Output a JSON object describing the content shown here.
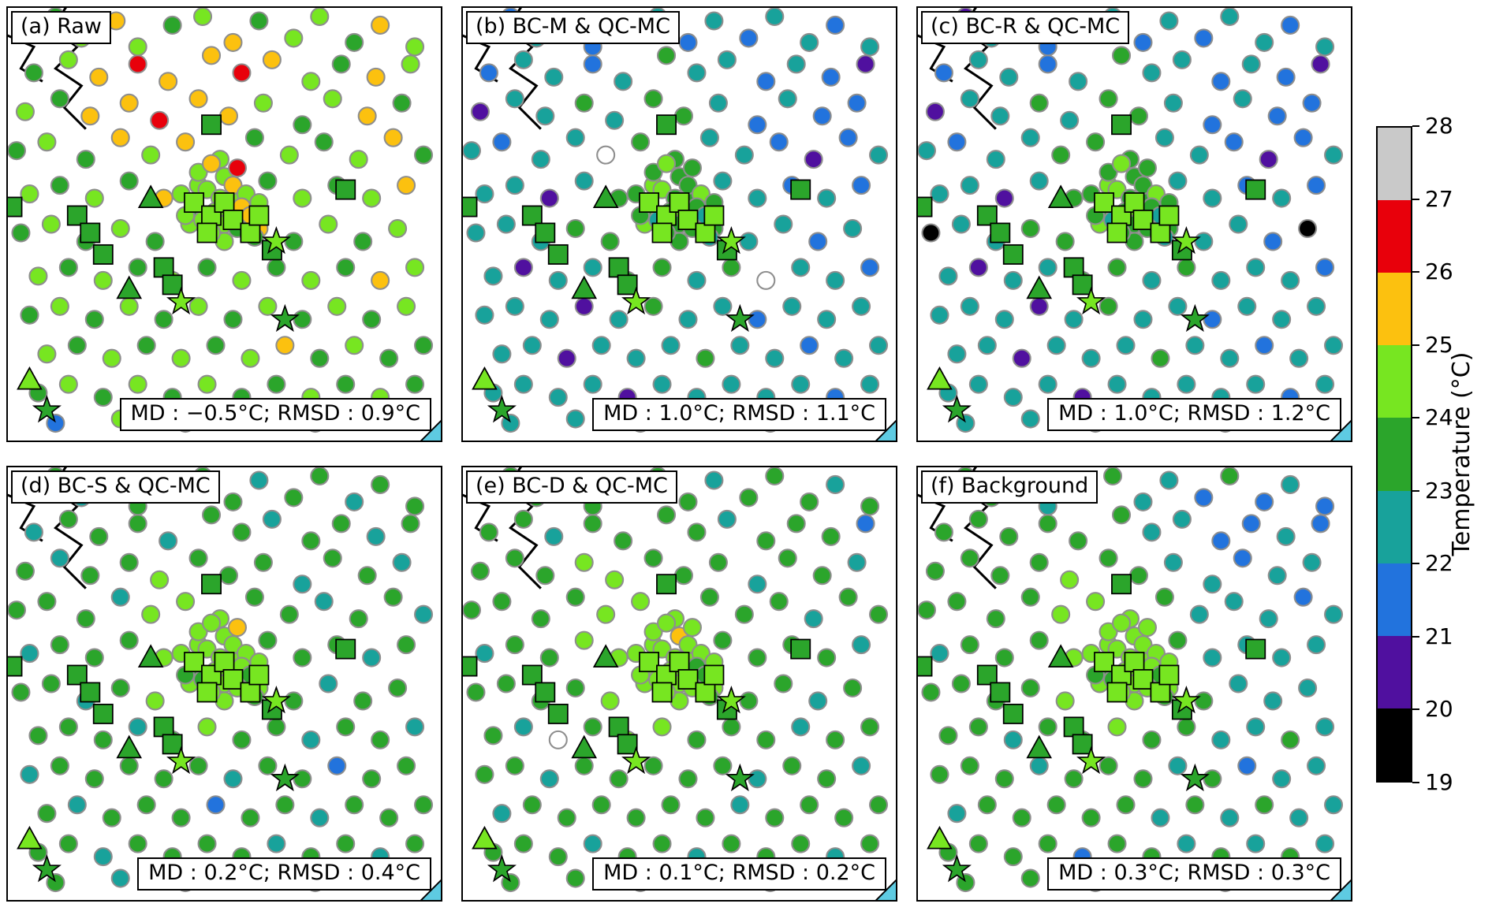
{
  "panels": [
    {
      "id": "a",
      "label": "(a) Raw",
      "stats": "MD : −0.5°C; RMSD : 0.9°C"
    },
    {
      "id": "b",
      "label": "(b) BC-M & QC-MC",
      "stats": "MD : 1.0°C; RMSD : 1.1°C"
    },
    {
      "id": "c",
      "label": "(c) BC-R & QC-MC",
      "stats": "MD : 1.0°C; RMSD : 1.2°C"
    },
    {
      "id": "d",
      "label": "(d) BC-S & QC-MC",
      "stats": "MD : 0.2°C; RMSD : 0.4°C"
    },
    {
      "id": "e",
      "label": "(e) BC-D & QC-MC",
      "stats": "MD : 0.1°C; RMSD : 0.2°C"
    },
    {
      "id": "f",
      "label": "(f) Background",
      "stats": "MD : 0.3°C; RMSD : 0.3°C"
    }
  ],
  "chart_data": {
    "type": "scatter",
    "description": "Six map panels of station temperature markers (circles = crowdsourced stations, squares / triangles / stars = reference stations) colored by temperature; discrete colorbar 19–28 °C.",
    "panel_stats": [
      {
        "panel": "(a) Raw",
        "MD_degC": -0.5,
        "RMSD_degC": 0.9
      },
      {
        "panel": "(b) BC-M & QC-MC",
        "MD_degC": 1.0,
        "RMSD_degC": 1.1
      },
      {
        "panel": "(c) BC-R & QC-MC",
        "MD_degC": 1.0,
        "RMSD_degC": 1.2
      },
      {
        "panel": "(d) BC-S & QC-MC",
        "MD_degC": 0.2,
        "RMSD_degC": 0.4
      },
      {
        "panel": "(e) BC-D & QC-MC",
        "MD_degC": 0.1,
        "RMSD_degC": 0.2
      },
      {
        "panel": "(f) Background",
        "MD_degC": 0.3,
        "RMSD_degC": 0.3
      }
    ],
    "colorbar": {
      "label": "Temperature (°C)",
      "ticks": [
        19,
        20,
        21,
        22,
        23,
        24,
        25,
        26,
        27,
        28
      ],
      "colors_bottom_to_top": [
        "#000000",
        "#50109f",
        "#2273dd",
        "#18a29b",
        "#2ba52b",
        "#77e621",
        "#fcc10f",
        "#e8000b",
        "#c9c9c9"
      ],
      "open_marker_color": "#ffffff",
      "bin_meaning": "digit 0–8 = temperature bin 19–20 … 27–28 °C; digit 9 = open (white) marker"
    },
    "markers": {
      "circles_xy": [
        [
          3,
          4
        ],
        [
          11,
          2
        ],
        [
          17,
          7
        ],
        [
          25,
          3
        ],
        [
          30,
          9
        ],
        [
          38,
          4
        ],
        [
          45,
          2
        ],
        [
          52,
          8
        ],
        [
          58,
          3
        ],
        [
          66,
          7
        ],
        [
          72,
          2
        ],
        [
          80,
          8
        ],
        [
          86,
          4
        ],
        [
          94,
          9
        ],
        [
          6,
          15
        ],
        [
          14,
          12
        ],
        [
          21,
          16
        ],
        [
          30,
          13
        ],
        [
          37,
          17
        ],
        [
          47,
          11
        ],
        [
          54,
          15
        ],
        [
          61,
          12
        ],
        [
          70,
          17
        ],
        [
          77,
          13
        ],
        [
          85,
          16
        ],
        [
          93,
          13
        ],
        [
          4,
          24
        ],
        [
          12,
          21
        ],
        [
          19,
          25
        ],
        [
          28,
          22
        ],
        [
          35,
          26
        ],
        [
          44,
          21
        ],
        [
          51,
          25
        ],
        [
          59,
          22
        ],
        [
          68,
          27
        ],
        [
          75,
          21
        ],
        [
          83,
          25
        ],
        [
          91,
          22
        ],
        [
          2,
          33
        ],
        [
          9,
          31
        ],
        [
          18,
          35
        ],
        [
          26,
          30
        ],
        [
          33,
          34
        ],
        [
          41,
          31
        ],
        [
          49,
          35
        ],
        [
          57,
          30
        ],
        [
          65,
          34
        ],
        [
          73,
          31
        ],
        [
          81,
          35
        ],
        [
          89,
          30
        ],
        [
          96,
          34
        ],
        [
          5,
          43
        ],
        [
          12,
          41
        ],
        [
          20,
          44
        ],
        [
          28,
          40
        ],
        [
          36,
          44
        ],
        [
          44,
          41
        ],
        [
          52,
          44
        ],
        [
          60,
          40
        ],
        [
          68,
          44
        ],
        [
          76,
          41
        ],
        [
          84,
          44
        ],
        [
          92,
          41
        ],
        [
          3,
          52
        ],
        [
          10,
          50
        ],
        [
          18,
          54
        ],
        [
          26,
          51
        ],
        [
          34,
          54
        ],
        [
          42,
          50
        ],
        [
          50,
          54
        ],
        [
          58,
          51
        ],
        [
          66,
          54
        ],
        [
          74,
          50
        ],
        [
          82,
          54
        ],
        [
          90,
          51
        ],
        [
          7,
          62
        ],
        [
          14,
          60
        ],
        [
          22,
          63
        ],
        [
          30,
          60
        ],
        [
          38,
          63
        ],
        [
          46,
          60
        ],
        [
          54,
          63
        ],
        [
          62,
          60
        ],
        [
          70,
          63
        ],
        [
          78,
          60
        ],
        [
          86,
          63
        ],
        [
          94,
          60
        ],
        [
          5,
          71
        ],
        [
          12,
          69
        ],
        [
          20,
          72
        ],
        [
          28,
          69
        ],
        [
          36,
          72
        ],
        [
          44,
          69
        ],
        [
          52,
          72
        ],
        [
          60,
          69
        ],
        [
          68,
          72
        ],
        [
          76,
          69
        ],
        [
          84,
          72
        ],
        [
          92,
          69
        ],
        [
          9,
          80
        ],
        [
          16,
          78
        ],
        [
          24,
          81
        ],
        [
          32,
          78
        ],
        [
          40,
          81
        ],
        [
          48,
          78
        ],
        [
          56,
          81
        ],
        [
          64,
          78
        ],
        [
          72,
          81
        ],
        [
          80,
          78
        ],
        [
          88,
          81
        ],
        [
          96,
          78
        ],
        [
          7,
          89
        ],
        [
          14,
          87
        ],
        [
          22,
          90
        ],
        [
          30,
          87
        ],
        [
          38,
          90
        ],
        [
          46,
          87
        ],
        [
          54,
          90
        ],
        [
          62,
          87
        ],
        [
          70,
          90
        ],
        [
          78,
          87
        ],
        [
          86,
          90
        ],
        [
          94,
          87
        ],
        [
          11,
          96
        ],
        [
          26,
          95
        ],
        [
          41,
          96
        ],
        [
          56,
          95
        ],
        [
          71,
          96
        ],
        [
          86,
          95
        ],
        [
          44,
          38
        ],
        [
          47,
          36
        ],
        [
          50,
          39
        ],
        [
          53,
          37
        ],
        [
          46,
          42
        ],
        [
          49,
          44
        ],
        [
          52,
          41
        ],
        [
          55,
          43
        ],
        [
          43,
          46
        ],
        [
          48,
          47
        ],
        [
          51,
          47
        ],
        [
          54,
          46
        ],
        [
          45,
          49
        ],
        [
          50,
          50
        ],
        [
          53,
          51
        ],
        [
          47,
          52
        ],
        [
          56,
          48
        ],
        [
          58,
          45
        ],
        [
          40,
          43
        ],
        [
          41,
          48
        ],
        [
          57,
          53
        ]
      ],
      "squares_xy": [
        [
          47,
          27
        ],
        [
          1,
          46
        ],
        [
          16,
          48
        ],
        [
          19,
          52
        ],
        [
          22,
          57
        ],
        [
          36,
          60
        ],
        [
          38,
          64
        ],
        [
          43,
          45
        ],
        [
          47,
          48
        ],
        [
          50,
          45
        ],
        [
          52,
          49
        ],
        [
          46,
          52
        ],
        [
          56,
          52
        ],
        [
          61,
          56
        ],
        [
          78,
          42
        ],
        [
          58,
          48
        ]
      ],
      "square_bins": "4444444555555445",
      "triangles_xy": [
        [
          33,
          44
        ],
        [
          28,
          65
        ],
        [
          5,
          86
        ]
      ],
      "triangle_bins": "445",
      "stars_xy": [
        [
          62,
          54
        ],
        [
          40,
          68
        ],
        [
          64,
          72
        ],
        [
          9,
          93
        ]
      ],
      "star_bins": "5544"
    },
    "panel_circle_bins": {
      "a": [
        "54565456455465",
        "456766765465",
        "546676654564",
        "4546565454564",
        "545465545456",
        "454545564545",
        "545454545465",
        "454545454545",
        "545454564544",
        "454545445454",
        "254545",
        "565755654556554565554"
      ],
      "b": [
        "32332332323323",
        "233234332321",
        "133434432322",
        "3233944332123",
        "331345433232",
        "333445443323",
        "313344349332",
        "333134332333",
        "331333433233",
        "333313333323",
        "333313",
        "454454454454344434443"
      ],
      "c": [
        "31332332323323",
        "233234332321",
        "133434432322",
        "3233444332123",
        "331345433232",
        "033445443320",
        "313344343332",
        "333134332333",
        "331333433233",
        "333313333323",
        "333313",
        "454454454454344434443"
      ],
      "d": [
        "44344344344344",
        "344434434434",
        "434454443443",
        "4443555443443",
        "344455544434",
        "443455554344",
        "444345443443",
        "344444344244",
        "434442443444",
        "443444434434",
        "434443",
        "555655554555455545544"
      ],
      "e": [
        "44434444344434",
        "443444434442",
        "444554443443",
        "4444555444344",
        "344555544443",
        "444455554434",
        "439455444344",
        "443444443443",
        "344444434444",
        "444344344434",
        "443444",
        "556555555554555545554"
      ],
      "f": [
        "44443443324232",
        "444444332232",
        "444454433233",
        "4444555433323",
        "344455543333",
        "444455554333",
        "443445443343",
        "444344434233",
        "344444343433",
        "444424434343",
        "444343",
        "555555554555455545544"
      ]
    },
    "decorations": {
      "corner_triangle_color": "#5ecbe2",
      "boundary_color": "#000000",
      "circle_edge_color": "#8e8e8e",
      "ref_marker_edge_color": "#000000"
    },
    "layout": {
      "rows": 2,
      "cols": 3,
      "grid": false,
      "colorbar_position": "right",
      "value_range": [
        19,
        28
      ]
    }
  }
}
